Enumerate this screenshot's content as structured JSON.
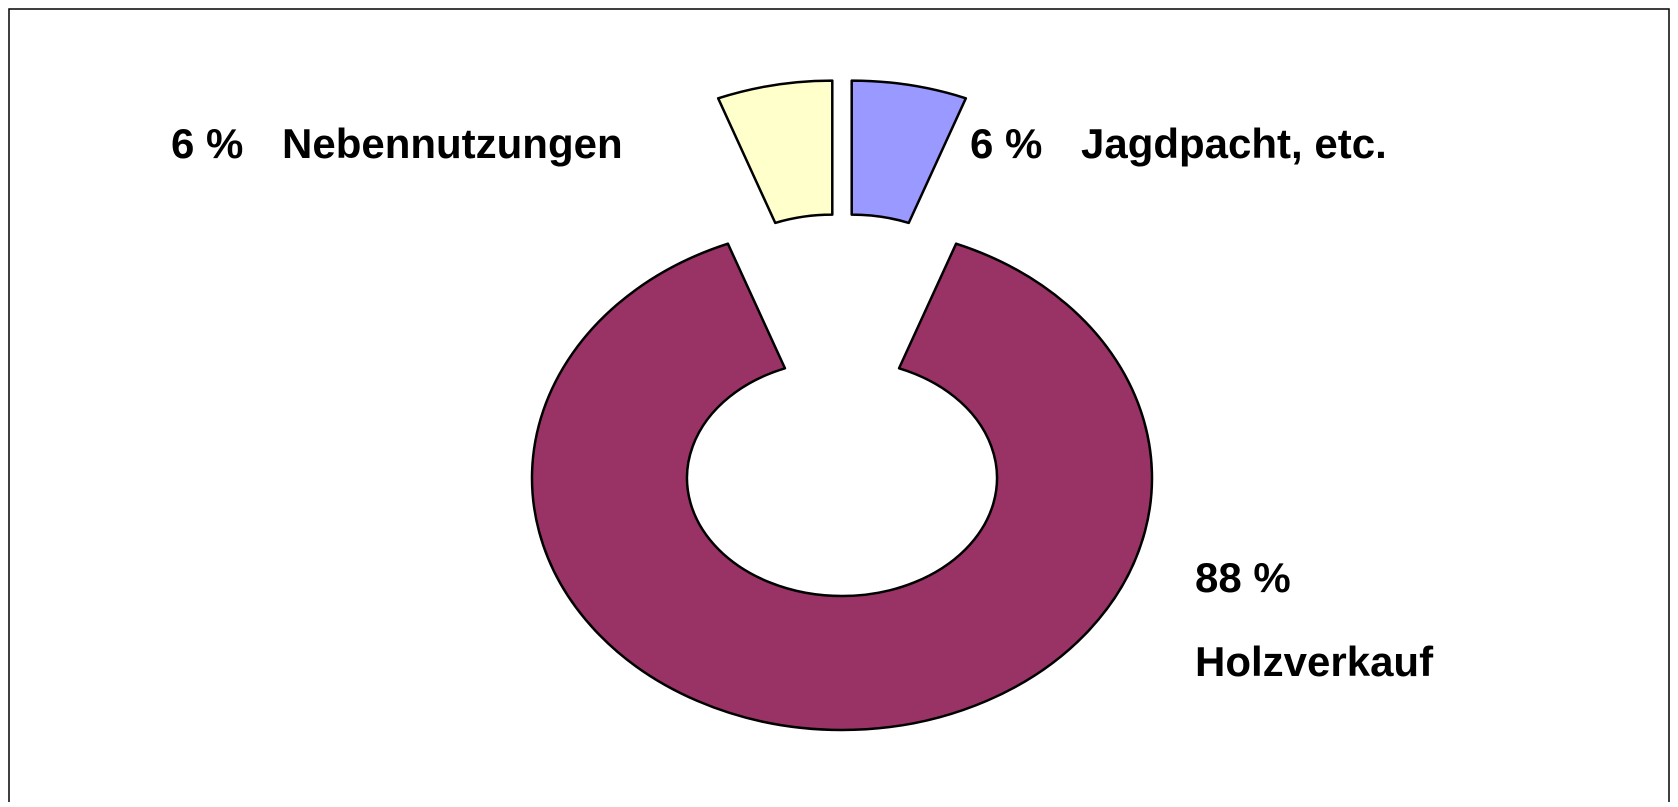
{
  "chart_data": {
    "type": "donut",
    "categories": [
      "Holzverkauf",
      "Nebennutzungen",
      "Jagdpacht, etc."
    ],
    "values": [
      88,
      6,
      6
    ],
    "value_labels": [
      "88 %",
      "6 %",
      "6 %"
    ],
    "colors": [
      "#993366",
      "#ffffcc",
      "#9999ff"
    ]
  }
}
